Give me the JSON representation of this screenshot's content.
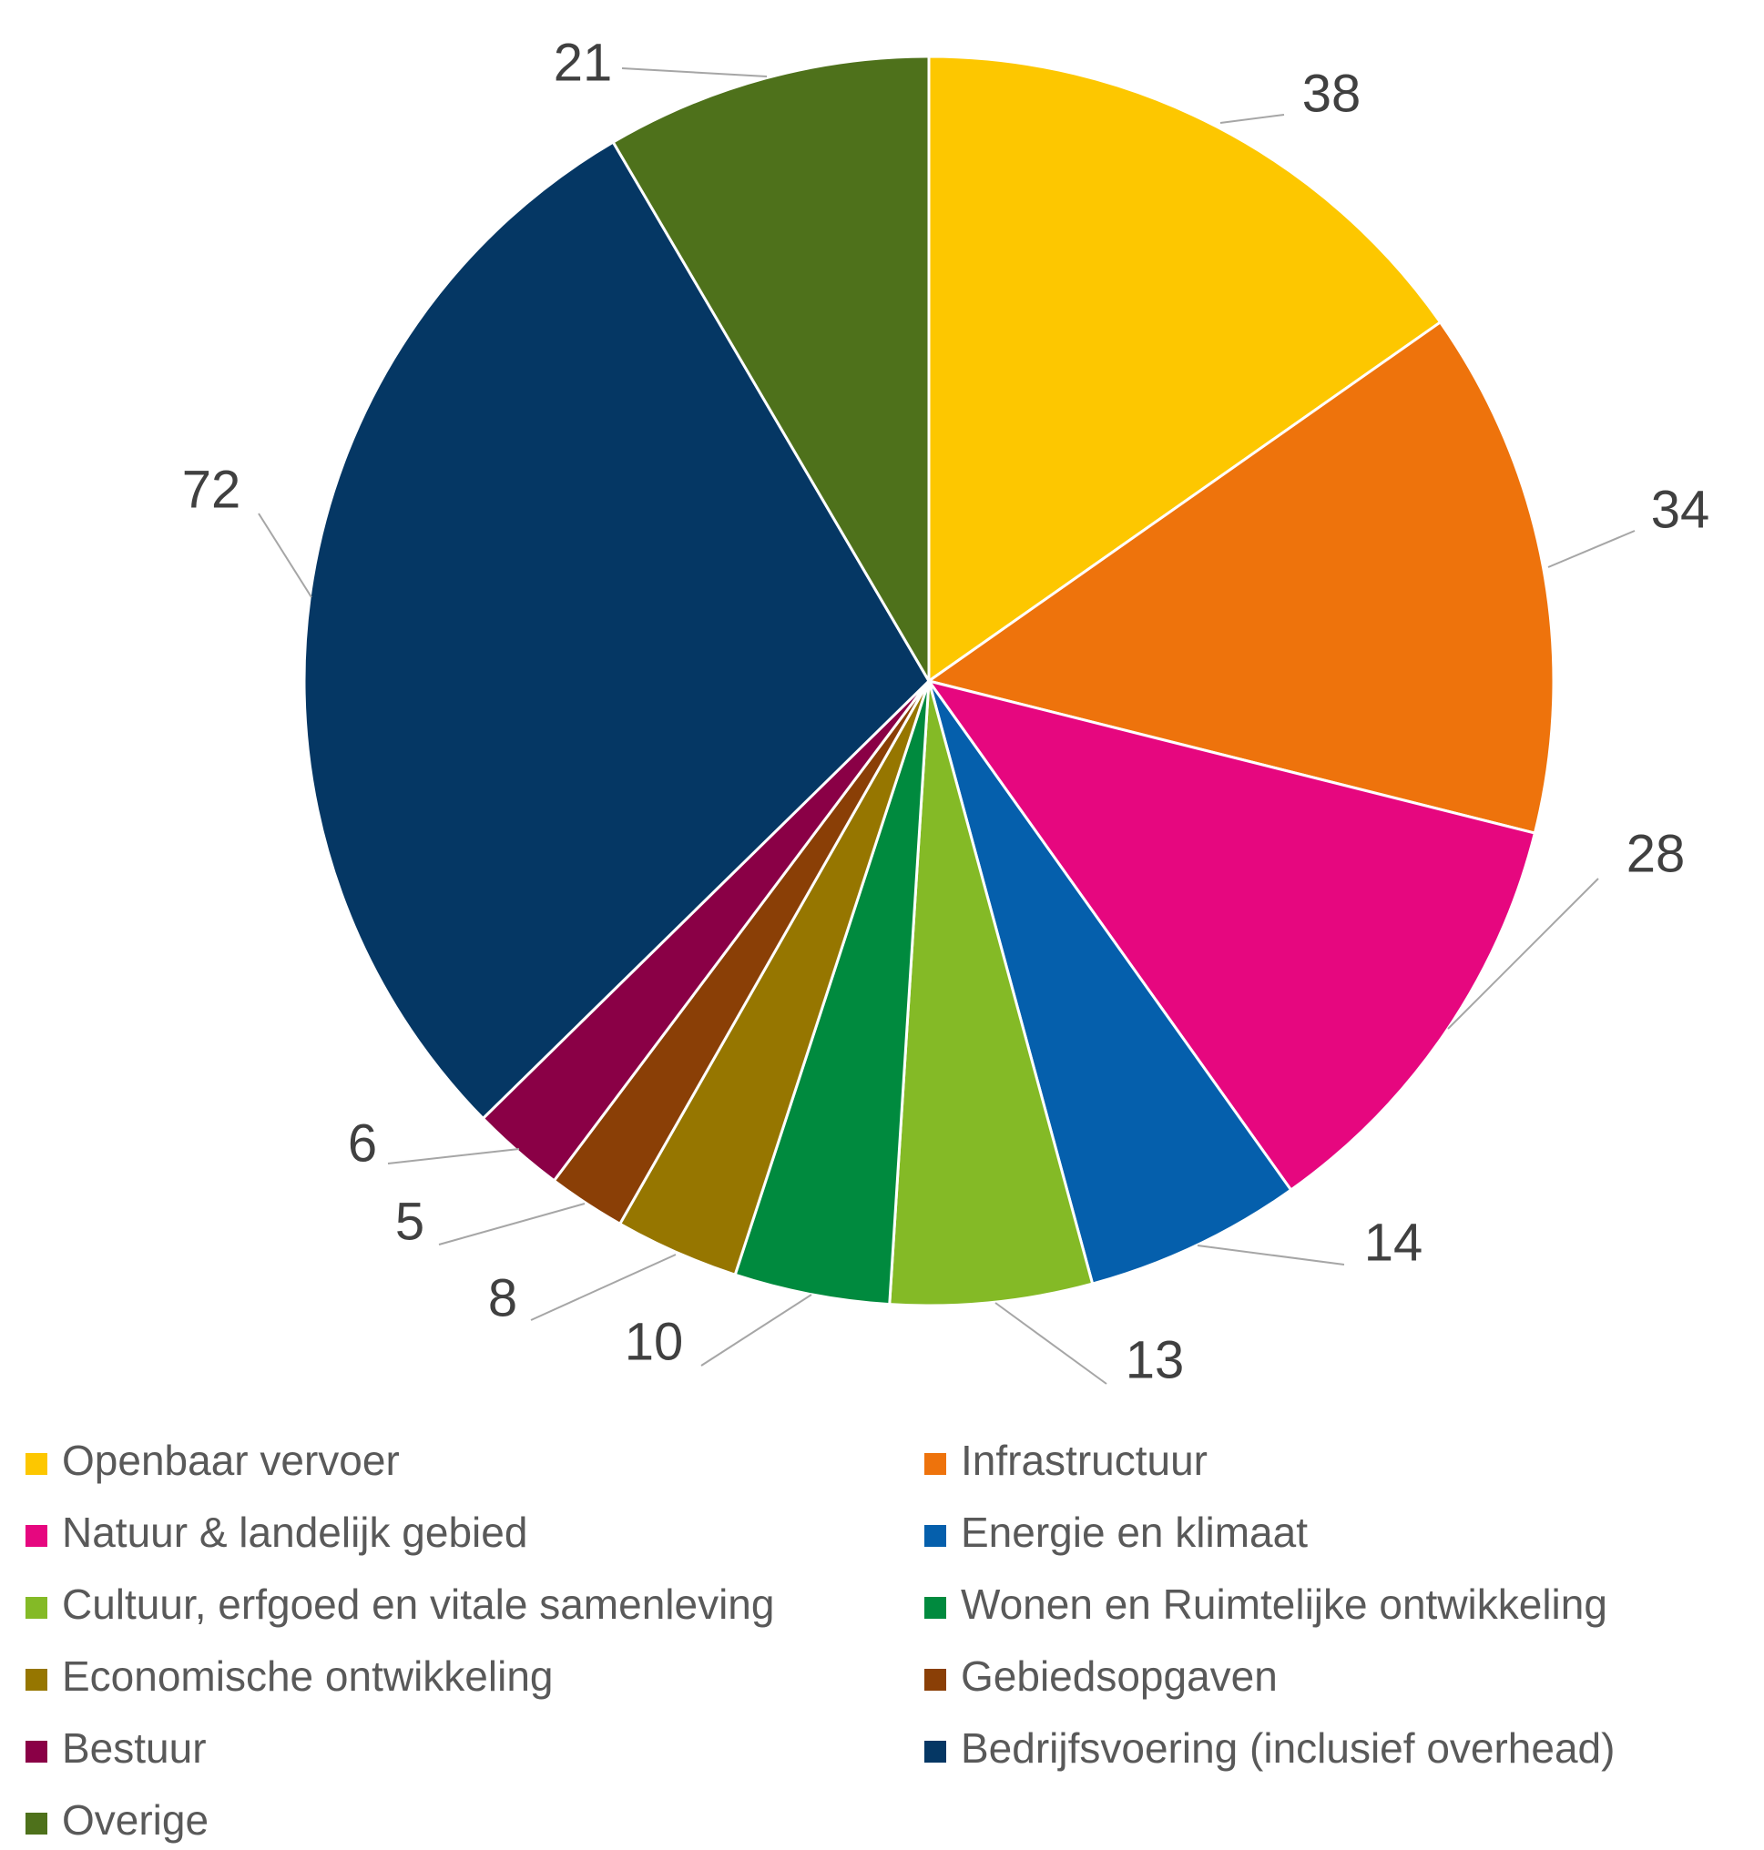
{
  "chart_data": {
    "type": "pie",
    "title": "",
    "start_angle_deg": 0,
    "direction": "clockwise",
    "legend_position": "bottom",
    "categories": [
      "Openbaar vervoer",
      "Infrastructuur",
      "Natuur & landelijk gebied",
      "Energie en klimaat",
      "Cultuur, erfgoed en vitale samenleving",
      "Wonen en Ruimtelijke ontwikkeling",
      "Economische ontwikkeling",
      "Gebiedsopgaven",
      "Bestuur",
      "Bedrijfsvoering (inclusief overhead)",
      "Overige"
    ],
    "values": [
      38,
      34,
      28,
      14,
      13,
      10,
      8,
      5,
      6,
      72,
      21
    ],
    "data_labels": [
      "38",
      "34",
      "28",
      "14",
      "13",
      "10",
      "8",
      "5",
      "6",
      "72",
      "21"
    ],
    "colors": [
      "#FDC700",
      "#EE730C",
      "#E6077F",
      "#055FAC",
      "#84BA26",
      "#008A3E",
      "#967600",
      "#8A3F06",
      "#8A0046",
      "#053764",
      "#4E711B"
    ]
  }
}
